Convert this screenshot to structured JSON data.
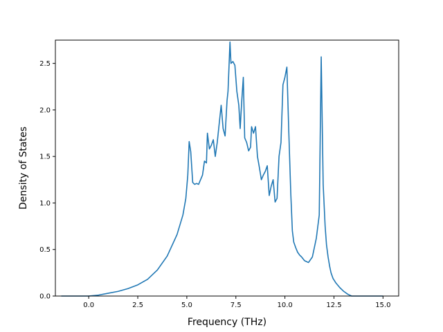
{
  "chart_data": {
    "type": "line",
    "xlabel": "Frequency (THz)",
    "ylabel": "Density of States",
    "xlim": [
      -1.7,
      15.8
    ],
    "ylim": [
      0.0,
      2.75
    ],
    "xticks": [
      0.0,
      2.5,
      5.0,
      7.5,
      10.0,
      12.5,
      15.0
    ],
    "xtick_labels": [
      "0.0",
      "2.5",
      "5.0",
      "7.5",
      "10.0",
      "12.5",
      "15.0"
    ],
    "yticks": [
      0.0,
      0.5,
      1.0,
      1.5,
      2.0,
      2.5
    ],
    "ytick_labels": [
      "0.0",
      "0.5",
      "1.0",
      "1.5",
      "2.0",
      "2.5"
    ],
    "grid": false,
    "line_color": "#1f77b4",
    "series": [
      {
        "x": [
          -1.4,
          0.0,
          0.5,
          1.0,
          1.5,
          2.0,
          2.5,
          3.0,
          3.5,
          4.0,
          4.5,
          4.8,
          4.95,
          5.05,
          5.12,
          5.2,
          5.3,
          5.4,
          5.5,
          5.6,
          5.7,
          5.8,
          5.9,
          6.0,
          6.05,
          6.15,
          6.25,
          6.35,
          6.45,
          6.55,
          6.65,
          6.75,
          6.85,
          6.95,
          7.05,
          7.1,
          7.2,
          7.25,
          7.35,
          7.45,
          7.55,
          7.65,
          7.72,
          7.8,
          7.88,
          7.95,
          8.05,
          8.15,
          8.25,
          8.3,
          8.4,
          8.5,
          8.6,
          8.7,
          8.8,
          8.9,
          9.0,
          9.1,
          9.2,
          9.3,
          9.4,
          9.5,
          9.6,
          9.7,
          9.8,
          9.9,
          10.0,
          10.1,
          10.2,
          10.3,
          10.38,
          10.45,
          10.55,
          10.65,
          10.75,
          10.85,
          11.0,
          11.2,
          11.4,
          11.6,
          11.75,
          11.85,
          11.95,
          12.05,
          12.12,
          12.2,
          12.28,
          12.35,
          12.45,
          12.6,
          12.8,
          13.0,
          13.2,
          13.4,
          13.55,
          13.7,
          13.8,
          15.0
        ],
        "y": [
          0.0,
          0.0,
          0.01,
          0.03,
          0.05,
          0.08,
          0.12,
          0.18,
          0.28,
          0.43,
          0.66,
          0.87,
          1.05,
          1.3,
          1.66,
          1.55,
          1.22,
          1.2,
          1.21,
          1.2,
          1.25,
          1.3,
          1.45,
          1.43,
          1.75,
          1.58,
          1.62,
          1.68,
          1.5,
          1.65,
          1.85,
          2.05,
          1.8,
          1.72,
          2.1,
          2.2,
          2.73,
          2.5,
          2.52,
          2.48,
          2.2,
          2.05,
          1.8,
          2.1,
          2.35,
          1.7,
          1.65,
          1.56,
          1.6,
          1.82,
          1.75,
          1.82,
          1.5,
          1.38,
          1.25,
          1.3,
          1.34,
          1.4,
          1.08,
          1.18,
          1.25,
          1.01,
          1.05,
          1.5,
          1.65,
          2.27,
          2.35,
          2.46,
          1.75,
          1.1,
          0.7,
          0.58,
          0.52,
          0.47,
          0.44,
          0.42,
          0.38,
          0.36,
          0.42,
          0.62,
          0.87,
          2.57,
          1.2,
          0.75,
          0.55,
          0.42,
          0.32,
          0.25,
          0.19,
          0.14,
          0.09,
          0.05,
          0.02,
          0.0,
          0.0,
          0.0,
          0.0,
          0.0
        ]
      }
    ]
  }
}
